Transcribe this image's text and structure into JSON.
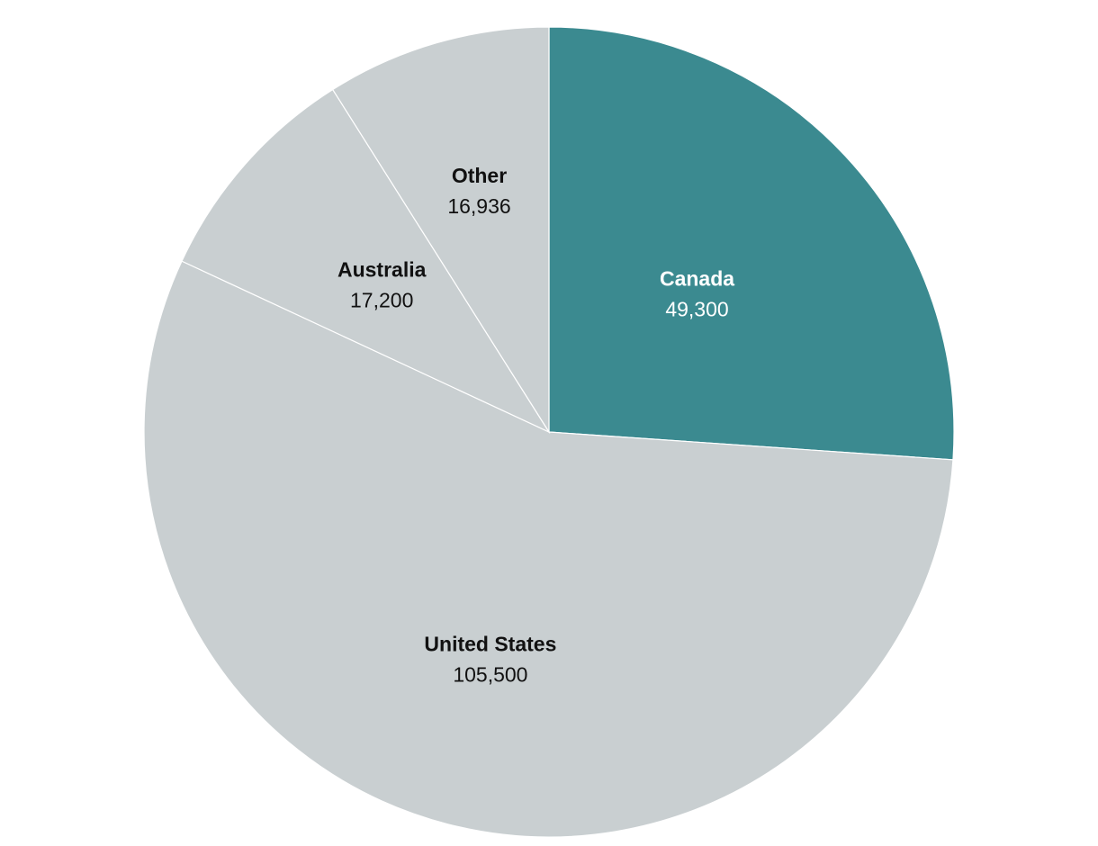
{
  "chart_data": {
    "type": "pie",
    "start_angle_deg": 0,
    "direction": "clockwise",
    "slices": [
      {
        "label": "Canada",
        "value": 49300,
        "display_value": "49,300",
        "color": "#3b8a90",
        "text_color": "#ffffff"
      },
      {
        "label": "United States",
        "value": 105500,
        "display_value": "105,500",
        "color": "#c9cfd1",
        "text_color": "#111111"
      },
      {
        "label": "Australia",
        "value": 17200,
        "display_value": "17,200",
        "color": "#c9cfd1",
        "text_color": "#111111"
      },
      {
        "label": "Other",
        "value": 16936,
        "display_value": "16,936",
        "color": "#c9cfd1",
        "text_color": "#111111"
      }
    ],
    "separator_color": "#ffffff"
  }
}
